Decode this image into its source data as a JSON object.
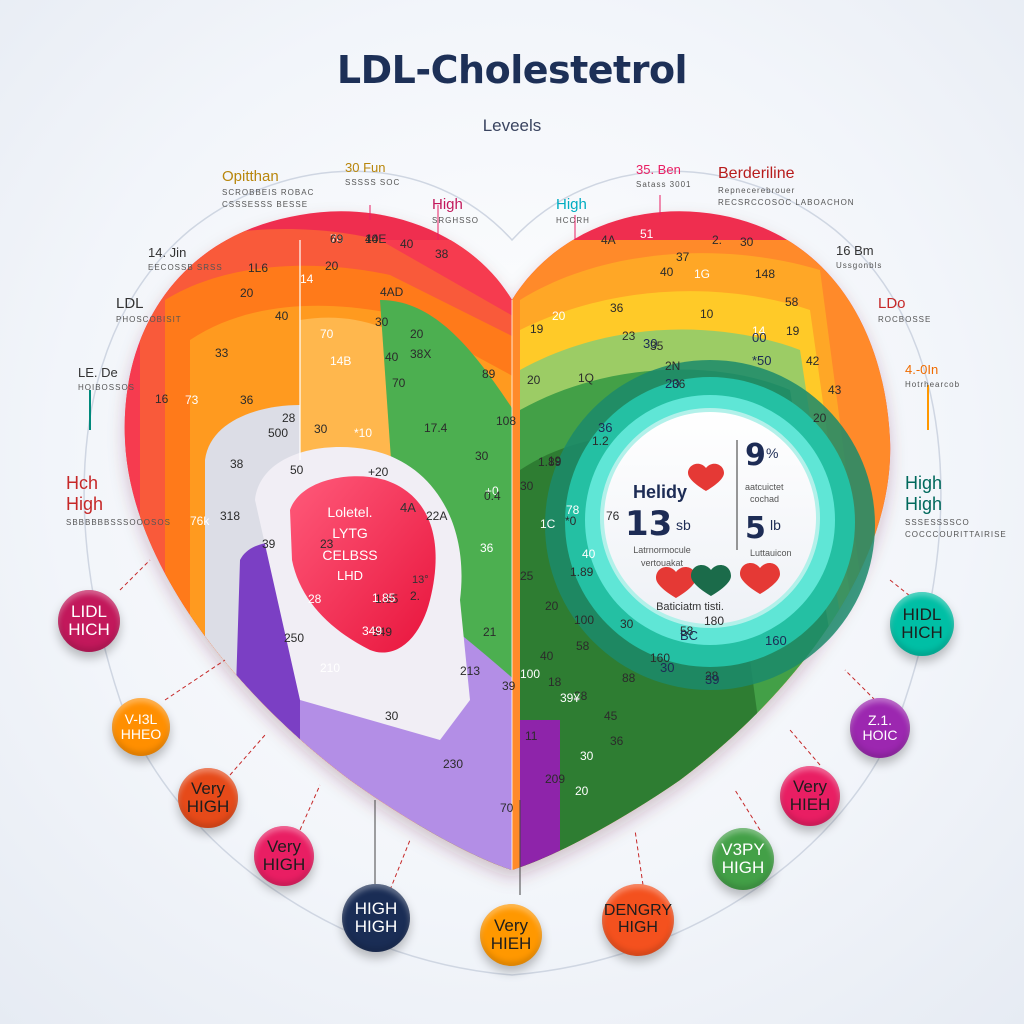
{
  "title": "LDL-Cholestetrol",
  "subtitle": "Leveels",
  "top_labels": [
    {
      "id": "optithan",
      "main": "Opitthan",
      "small": "SCROBBEIS ROBAC",
      "small2": "CSSSESSS BESSE"
    },
    {
      "id": "fun",
      "main": "30 Fun",
      "small": "SSSSS SOC"
    },
    {
      "id": "high-left",
      "main": "High",
      "small": "SRGHSSO"
    },
    {
      "id": "high-right",
      "main": "High",
      "small": "HCCRH"
    },
    {
      "id": "ben",
      "main": "35. Ben",
      "small": "Satass 3001"
    },
    {
      "id": "borderline",
      "main": "Berderiline",
      "small": "Repnecerebrouer",
      "small2": "RECSRCCOSOC LABOACHON"
    }
  ],
  "side_labels": [
    {
      "id": "fourteen",
      "main": "14. Jin",
      "small": "EECOSSB SRSS"
    },
    {
      "id": "ldl-left",
      "main": "LDL",
      "small": "PHOSCOBISIT"
    },
    {
      "id": "le-de",
      "main": "LE. De",
      "small": "HOIBOSSOS"
    },
    {
      "id": "hch-high",
      "main": "Hch",
      "main2": "High",
      "small": "SBBBBBBSSSOOOSOS"
    },
    {
      "id": "sixteen",
      "main": "16 Bm",
      "small": "Ussgonbls"
    },
    {
      "id": "ldo",
      "main": "LDo",
      "small": "ROCBOSSE"
    },
    {
      "id": "four-oin",
      "main": "4.-0In",
      "small": "Hotrhearcob"
    },
    {
      "id": "high-high-right",
      "main": "High",
      "main2": "High",
      "small": "SSSESSSSCO",
      "small2": "COCCCOURITTAIRISE"
    }
  ],
  "heart_numbers": [
    "70",
    "14E",
    "40",
    "38",
    "1L6",
    "14",
    "20",
    "4AD",
    "20",
    "40",
    "70",
    "30",
    "20",
    "33",
    "40",
    "14B",
    "70",
    "38X",
    "89",
    "16",
    "73",
    "36",
    "28",
    "500",
    "30",
    "*10",
    "17.4",
    "38",
    "50",
    "+20",
    "76k",
    "318",
    "23",
    "39",
    "22A",
    "28",
    "2.",
    "1.85",
    "349",
    "250",
    "210",
    "30",
    "230",
    "70",
    "209",
    "100",
    "213",
    "1.89",
    "30",
    "19",
    "20",
    "20",
    "1Q",
    "36",
    "108",
    "1C",
    "1.2",
    "2N",
    "35",
    "4A",
    "51",
    "37",
    "2.",
    "30",
    "40",
    "1G",
    "148",
    "58",
    "23",
    "10",
    "14",
    "19",
    "42",
    "43",
    "20",
    "78",
    "76",
    "36",
    "19",
    "1.89",
    "36",
    "100",
    "30",
    "180",
    "36",
    "30",
    "45",
    "28",
    "*0",
    "30",
    "+0",
    "25",
    "20",
    "0.4",
    "11",
    "20",
    "40",
    "58",
    "18",
    "21",
    "40",
    "39",
    "58",
    "28",
    "160",
    "39¥",
    "88",
    "69",
    "40"
  ],
  "inner_red": {
    "l1": "Loletel.",
    "l2": "LYTG",
    "l3": "CELBSS",
    "l4": "LHD",
    "n1": "4A",
    "n2": "1.85",
    "n3": "349",
    "n4": "13°"
  },
  "panel": {
    "label": "Helidy",
    "big_left": "13",
    "big_left_unit": "sb",
    "small_left": "Latrnormocule",
    "small_left2": "vertouakat",
    "big_top": "9",
    "big_top_unit": "%",
    "small_top": "aatcuictet",
    "small_top2": "cochad",
    "big_bottom": "5",
    "big_bottom_unit": "lb",
    "small_bottom": "Luttauicon",
    "bottom_text": "Baticiatm tisti.",
    "ring_nums": [
      "*50",
      "30",
      "00",
      "36",
      "160",
      "30",
      "20",
      "BC",
      "39"
    ]
  },
  "badges": [
    {
      "id": "ldl-high-left",
      "text": "LIDL\nHICH",
      "color": "#c2185b"
    },
    {
      "id": "v-high-left",
      "text": "V-I3L\nHHEO",
      "color": "#ff8f00"
    },
    {
      "id": "very-high-l1",
      "text": "Very\nHIGH",
      "color": "#e64a19"
    },
    {
      "id": "very-high-l2",
      "text": "Very\nHIGH",
      "color": "#e91e63"
    },
    {
      "id": "high-high-bottom",
      "text": "HIGH\nHIGH",
      "color": "#1a2d55"
    },
    {
      "id": "very-hieh-bottom",
      "text": "Very\nHIEH",
      "color": "#ff9800"
    },
    {
      "id": "dengry-high",
      "text": "DENGRY\nHIGH",
      "color": "#f4511e"
    },
    {
      "id": "vspy-high",
      "text": "V3PY\nHIGH",
      "color": "#43a047"
    },
    {
      "id": "very-hieh-right",
      "text": "Very\nHIEH",
      "color": "#e91e63"
    },
    {
      "id": "z1-hoic",
      "text": "Z.1.\nHOIC",
      "color": "#9c27b0"
    },
    {
      "id": "hidl-hich-right",
      "text": "HIDL\nHICH",
      "color": "#00bfa5"
    }
  ],
  "colors": {
    "red": "#ef2d4f",
    "orange": "#ff7a1a",
    "amber": "#ffb300",
    "yellow": "#ffd54f",
    "green": "#43a047",
    "teal": "#1de9b6",
    "purple": "#7b3fc4",
    "pink": "#e91e63",
    "navy": "#1d3057"
  }
}
